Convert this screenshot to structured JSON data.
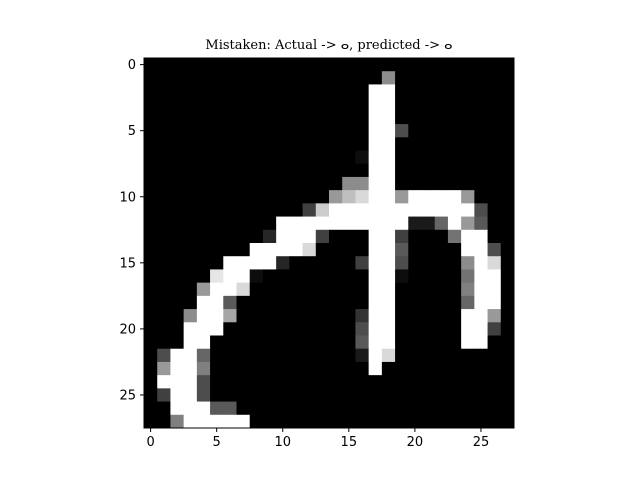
{
  "chart_data": {
    "type": "heatmap",
    "title": "Mistaken: Actual -> ⴰ, predicted -> ⴰ",
    "xlabel": "",
    "ylabel": "",
    "colormap": "gray",
    "value_range": [
      0,
      1
    ],
    "grid": false,
    "rows": 28,
    "cols": 28,
    "x_ticks": [
      0,
      5,
      10,
      15,
      20,
      25
    ],
    "y_ticks": [
      0,
      5,
      10,
      15,
      20,
      25
    ],
    "x_range": [
      -0.5,
      27.5
    ],
    "y_range": [
      27.5,
      -0.5
    ],
    "pixels": [
      [
        0,
        0,
        0,
        0,
        0,
        0,
        0,
        0,
        0,
        0,
        0,
        0,
        0,
        0,
        0,
        0,
        0,
        0,
        0,
        0,
        0,
        0,
        0,
        0,
        0,
        0,
        0,
        0
      ],
      [
        0,
        0,
        0,
        0,
        0,
        0,
        0,
        0,
        0,
        0,
        0,
        0,
        0,
        0,
        0,
        0,
        0,
        0,
        0.55,
        0,
        0,
        0,
        0,
        0,
        0,
        0,
        0,
        0
      ],
      [
        0,
        0,
        0,
        0,
        0,
        0,
        0,
        0,
        0,
        0,
        0,
        0,
        0,
        0,
        0,
        0,
        0,
        1,
        1,
        0,
        0,
        0,
        0,
        0,
        0,
        0,
        0,
        0
      ],
      [
        0,
        0,
        0,
        0,
        0,
        0,
        0,
        0,
        0,
        0,
        0,
        0,
        0,
        0,
        0,
        0,
        0,
        1,
        1,
        0,
        0,
        0,
        0,
        0,
        0,
        0,
        0,
        0
      ],
      [
        0,
        0,
        0,
        0,
        0,
        0,
        0,
        0,
        0,
        0,
        0,
        0,
        0,
        0,
        0,
        0,
        0,
        1,
        1,
        0,
        0,
        0,
        0,
        0,
        0,
        0,
        0,
        0
      ],
      [
        0,
        0,
        0,
        0,
        0,
        0,
        0,
        0,
        0,
        0,
        0,
        0,
        0,
        0,
        0,
        0,
        0,
        1,
        1,
        0.3,
        0,
        0,
        0,
        0,
        0,
        0,
        0,
        0
      ],
      [
        0,
        0,
        0,
        0,
        0,
        0,
        0,
        0,
        0,
        0,
        0,
        0,
        0,
        0,
        0,
        0,
        0,
        1,
        1,
        0,
        0,
        0,
        0,
        0,
        0,
        0,
        0,
        0
      ],
      [
        0,
        0,
        0,
        0,
        0,
        0,
        0,
        0,
        0,
        0,
        0,
        0,
        0,
        0,
        0,
        0,
        0.05,
        1,
        1,
        0,
        0,
        0,
        0,
        0,
        0,
        0,
        0,
        0
      ],
      [
        0,
        0,
        0,
        0,
        0,
        0,
        0,
        0,
        0,
        0,
        0,
        0,
        0,
        0,
        0,
        0,
        0,
        1,
        1,
        0,
        0,
        0,
        0,
        0,
        0,
        0,
        0,
        0
      ],
      [
        0,
        0,
        0,
        0,
        0,
        0,
        0,
        0,
        0,
        0,
        0,
        0,
        0,
        0,
        0,
        0.55,
        0.55,
        1,
        1,
        0,
        0,
        0,
        0,
        0,
        0,
        0,
        0,
        0
      ],
      [
        0,
        0,
        0,
        0,
        0,
        0,
        0,
        0,
        0,
        0,
        0,
        0,
        0,
        0,
        0.6,
        0.75,
        0.85,
        1,
        1,
        0.6,
        1,
        1,
        1,
        1,
        0.6,
        0,
        0,
        0
      ],
      [
        0,
        0,
        0,
        0,
        0,
        0,
        0,
        0,
        0,
        0,
        0,
        0,
        0.25,
        0.8,
        1,
        1,
        1,
        1,
        1,
        1,
        1,
        1,
        1,
        1,
        1,
        0.3,
        0,
        0
      ],
      [
        0,
        0,
        0,
        0,
        0,
        0,
        0,
        0,
        0,
        0,
        1,
        1,
        1,
        1,
        1,
        1,
        1,
        1,
        1,
        1,
        0.1,
        0.1,
        0.4,
        1,
        0.6,
        0.35,
        0,
        0
      ],
      [
        0,
        0,
        0,
        0,
        0,
        0,
        0,
        0,
        0,
        0.15,
        1,
        1,
        1,
        0.25,
        0,
        0,
        0,
        1,
        1,
        0.25,
        0,
        0,
        0,
        0.45,
        1,
        1,
        0,
        0
      ],
      [
        0,
        0,
        0,
        0,
        0,
        0,
        0,
        0,
        1,
        1,
        1,
        1,
        0.85,
        0,
        0,
        0,
        0,
        1,
        1,
        0.35,
        0,
        0,
        0,
        0,
        1,
        1,
        0.3,
        0
      ],
      [
        0,
        0,
        0,
        0,
        0,
        0,
        1,
        1,
        1,
        1,
        0.15,
        0,
        0,
        0,
        0,
        0,
        0.25,
        1,
        1,
        0.3,
        0,
        0,
        0,
        0,
        0.55,
        1,
        0.85,
        0
      ],
      [
        0,
        0,
        0,
        0,
        0,
        0.9,
        1,
        1,
        0.05,
        0,
        0,
        0,
        0,
        0,
        0,
        0,
        0,
        1,
        1,
        0.05,
        0,
        0,
        0,
        0,
        0.45,
        1,
        1,
        0
      ],
      [
        0,
        0,
        0,
        0,
        0.6,
        1,
        1,
        0.85,
        0,
        0,
        0,
        0,
        0,
        0,
        0,
        0,
        0,
        1,
        1,
        0,
        0,
        0,
        0,
        0,
        0.5,
        1,
        1,
        0
      ],
      [
        0,
        0,
        0,
        0,
        1,
        1,
        0.35,
        0,
        0,
        0,
        0,
        0,
        0,
        0,
        0,
        0,
        0,
        1,
        1,
        0,
        0,
        0,
        0,
        0,
        0.4,
        1,
        1,
        0
      ],
      [
        0,
        0,
        0,
        0.55,
        1,
        1,
        0.65,
        0,
        0,
        0,
        0,
        0,
        0,
        0,
        0,
        0,
        0.2,
        1,
        1,
        0,
        0,
        0,
        0,
        0,
        1,
        1,
        0.6,
        0
      ],
      [
        0,
        0,
        0,
        1,
        1,
        1,
        0,
        0,
        0,
        0,
        0,
        0,
        0,
        0,
        0,
        0,
        0.3,
        1,
        1,
        0,
        0,
        0,
        0,
        0,
        1,
        1,
        0.25,
        0
      ],
      [
        0,
        0,
        0,
        1,
        1,
        0,
        0,
        0,
        0,
        0,
        0,
        0,
        0,
        0,
        0,
        0,
        0.35,
        1,
        1,
        0,
        0,
        0,
        0,
        0,
        1,
        1,
        0,
        0
      ],
      [
        0,
        0.3,
        1,
        1,
        0.4,
        0,
        0,
        0,
        0,
        0,
        0,
        0,
        0,
        0,
        0,
        0,
        0.1,
        1,
        0.85,
        0,
        0,
        0,
        0,
        0,
        0,
        0,
        0,
        0
      ],
      [
        0,
        0.6,
        1,
        1,
        0.5,
        0,
        0,
        0,
        0,
        0,
        0,
        0,
        0,
        0,
        0,
        0,
        0,
        1,
        0,
        0,
        0,
        0,
        0,
        0,
        0,
        0,
        0,
        0
      ],
      [
        0,
        1,
        1,
        1,
        0.3,
        0,
        0,
        0,
        0,
        0,
        0,
        0,
        0,
        0,
        0,
        0,
        0,
        0,
        0,
        0,
        0,
        0,
        0,
        0,
        0,
        0,
        0,
        0
      ],
      [
        0,
        0.25,
        1,
        1,
        0.3,
        0,
        0,
        0,
        0,
        0,
        0,
        0,
        0,
        0,
        0,
        0,
        0,
        0,
        0,
        0,
        0,
        0,
        0,
        0,
        0,
        0,
        0,
        0
      ],
      [
        0,
        0,
        1,
        1,
        1,
        0.35,
        0.35,
        0,
        0,
        0,
        0,
        0,
        0,
        0,
        0,
        0,
        0,
        0,
        0,
        0,
        0,
        0,
        0,
        0,
        0,
        0,
        0,
        0
      ],
      [
        0,
        0,
        0.5,
        1,
        1,
        1,
        1,
        1,
        0,
        0,
        0,
        0,
        0,
        0,
        0,
        0,
        0,
        0,
        0,
        0,
        0,
        0,
        0,
        0,
        0,
        0,
        0,
        0
      ]
    ]
  }
}
